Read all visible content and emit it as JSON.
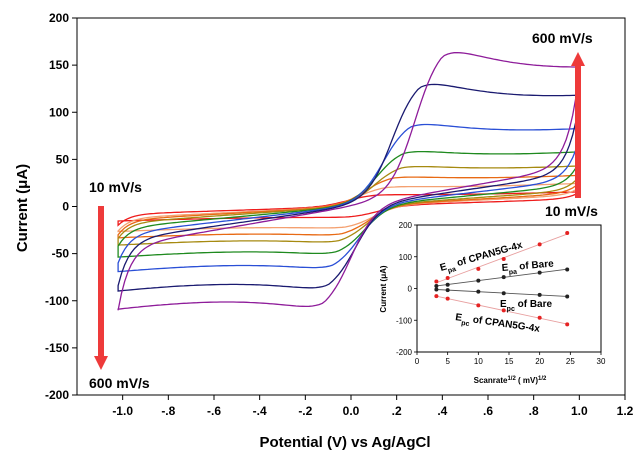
{
  "colors": {
    "arrow": "#ee3a3a",
    "inset_red": "#e52222",
    "inset_black": "#222222",
    "inset_fit": "#e8a0a0"
  },
  "chart_data": [
    {
      "type": "line",
      "xlabel": "Potential (V) vs Ag/AgCl",
      "ylabel_prefix": "Current (",
      "ylabel_mu": "μ",
      "ylabel_suffix": "A)",
      "xlim": [
        -1.2,
        1.2
      ],
      "ylim": [
        -200,
        200
      ],
      "xticks": [
        -1.0,
        -0.8,
        -0.6,
        -0.4,
        -0.2,
        0.0,
        0.2,
        0.4,
        0.6,
        0.8,
        1.0,
        1.2
      ],
      "xtick_labels": [
        "-1.0",
        "-.8",
        "-.6",
        "-.4",
        "-.2",
        "0.0",
        ".2",
        ".4",
        ".6",
        ".8",
        "1.0",
        "1.2"
      ],
      "yticks": [
        -200,
        -150,
        -100,
        -50,
        0,
        50,
        100,
        150,
        200
      ],
      "ytick_labels": [
        "-200",
        "-150",
        "-100",
        "-50",
        "0",
        "50",
        "100",
        "150",
        "200"
      ],
      "grid": false,
      "annotations": {
        "top_right": "600 mV/s",
        "bottom_right": "10 mV/s",
        "top_left": "10 mV/s",
        "bottom_left": "600 mV/s"
      },
      "series": [
        {
          "color": "#ee1c1c",
          "ipa": 13,
          "ipc": -12,
          "epa": 0.1,
          "epc": 0.0,
          "c": 8,
          "e_low": -20,
          "e_high": 15
        },
        {
          "color": "#f4a070",
          "ipa": 22,
          "ipc": -24,
          "epa": 0.15,
          "epc": -0.02,
          "c": 12,
          "e_low": -26,
          "e_high": 20
        },
        {
          "color": "#e86a14",
          "ipa": 33,
          "ipc": -32,
          "epa": 0.18,
          "epc": -0.04,
          "c": 14,
          "e_low": -30,
          "e_high": 25
        },
        {
          "color": "#a68a10",
          "ipa": 45,
          "ipc": -40,
          "epa": 0.22,
          "epc": -0.05,
          "c": 17,
          "e_low": -34,
          "e_high": 32
        },
        {
          "color": "#1f8a1f",
          "ipa": 62,
          "ipc": -53,
          "epa": 0.23,
          "epc": -0.06,
          "c": 22,
          "e_low": -42,
          "e_high": 48
        },
        {
          "color": "#2a4fd6",
          "ipa": 93,
          "ipc": -69,
          "epa": 0.26,
          "epc": -0.08,
          "c": 28,
          "e_low": -60,
          "e_high": 72
        },
        {
          "color": "#1a1a70",
          "ipa": 139,
          "ipc": -92,
          "epa": 0.3,
          "epc": -0.1,
          "c": 35,
          "e_low": -84,
          "e_high": 110
        },
        {
          "color": "#8e1c9a",
          "ipa": 175,
          "ipc": -113,
          "epa": 0.4,
          "epc": -0.12,
          "c": 42,
          "e_low": -110,
          "e_high": 142
        }
      ]
    },
    {
      "type": "scatter",
      "xlabel_prefix": "Scanrate",
      "xlabel_sup1": "1/2",
      "xlabel_mid": " ( mV)",
      "xlabel_sup2": "1/2",
      "ylabel_prefix": "Current (",
      "ylabel_mu": "μ",
      "ylabel_suffix": "A)",
      "xlim": [
        0,
        30
      ],
      "ylim": [
        -200,
        200
      ],
      "xticks": [
        0,
        5,
        10,
        15,
        20,
        25,
        30
      ],
      "xtick_labels": [
        "0",
        "5",
        "10",
        "15",
        "20",
        "25",
        "30"
      ],
      "yticks": [
        -200,
        -100,
        0,
        100,
        200
      ],
      "ytick_labels": [
        "-200",
        "-100",
        "0",
        "100",
        "200"
      ],
      "x": [
        3.16,
        5.0,
        10.0,
        14.14,
        20.0,
        24.49
      ],
      "labels": {
        "pa_cpan": {
          "E": "E",
          "sub": "pa",
          "rest": " of CPAN5G-4x"
        },
        "pa_bare": {
          "E": "E",
          "sub": "pa",
          "rest": " of Bare"
        },
        "pc_bare": {
          "E": "E",
          "sub": "pc",
          "rest": " of Bare"
        },
        "pc_cpan": {
          "E": "E",
          "sub": "pc",
          "rest": " of CPAN5G-4x"
        }
      },
      "series": [
        {
          "key": "pa_cpan",
          "color": "red",
          "values": [
            22,
            33,
            62,
            93,
            139,
            175
          ]
        },
        {
          "key": "pa_bare",
          "color": "black",
          "values": [
            8,
            12,
            25,
            36,
            50,
            60
          ]
        },
        {
          "key": "pc_bare",
          "color": "black",
          "values": [
            -3,
            -5,
            -10,
            -15,
            -20,
            -25
          ]
        },
        {
          "key": "pc_cpan",
          "color": "red",
          "values": [
            -24,
            -32,
            -53,
            -69,
            -92,
            -113
          ]
        }
      ]
    }
  ]
}
